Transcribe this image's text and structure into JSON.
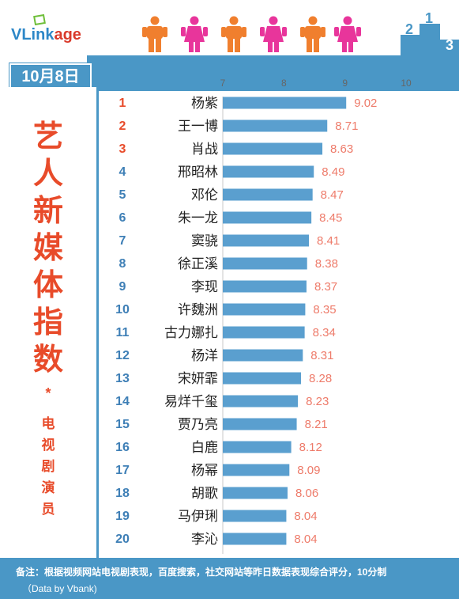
{
  "brand": {
    "name_prefix": "VLink",
    "name_suffix": "age"
  },
  "date": "10月8日",
  "side_title": [
    "艺",
    "人",
    "新",
    "媒",
    "体",
    "指",
    "数"
  ],
  "side_star": "*",
  "side_subtitle": [
    "电",
    "视",
    "剧",
    "演",
    "员"
  ],
  "footer": {
    "note": "备注：根据视频网站电视剧表现，百度搜索，社交网站等昨日数据表现综合评分，10分制",
    "source": "（Data by Vbank)"
  },
  "colors": {
    "bar": "#5a9fcf",
    "value": "#ee7b6a",
    "rank_top": "#e84b2a",
    "rank": "#3e7fb6",
    "accent_blue": "#4a97c6"
  },
  "chart_data": {
    "type": "bar",
    "orientation": "horizontal",
    "xlim": [
      7,
      10
    ],
    "xticks": [
      "7",
      "8",
      "9",
      "10"
    ],
    "ranks": [
      "1",
      "2",
      "3",
      "4",
      "5",
      "6",
      "7",
      "8",
      "9",
      "10",
      "11",
      "12",
      "13",
      "14",
      "15",
      "16",
      "17",
      "18",
      "19",
      "20"
    ],
    "categories": [
      "杨紫",
      "王一博",
      "肖战",
      "邢昭林",
      "邓伦",
      "朱一龙",
      "窦骁",
      "徐正溪",
      "李现",
      "许魏洲",
      "古力娜扎",
      "杨洋",
      "宋妍霏",
      "易烊千玺",
      "贾乃亮",
      "白鹿",
      "杨幂",
      "胡歌",
      "马伊琍",
      "李沁"
    ],
    "values": [
      9.02,
      8.71,
      8.63,
      8.49,
      8.47,
      8.45,
      8.41,
      8.38,
      8.37,
      8.35,
      8.34,
      8.31,
      8.28,
      8.23,
      8.21,
      8.12,
      8.09,
      8.06,
      8.04,
      8.04
    ],
    "value_labels": [
      "9.02",
      "8.71",
      "8.63",
      "8.49",
      "8.47",
      "8.45",
      "8.41",
      "8.38",
      "8.37",
      "8.35",
      "8.34",
      "8.31",
      "8.28",
      "8.23",
      "8.21",
      "8.12",
      "8.09",
      "8.06",
      "8.04",
      "8.04"
    ]
  }
}
